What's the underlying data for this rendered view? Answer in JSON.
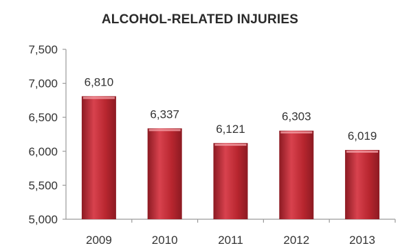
{
  "chart_data": {
    "type": "bar",
    "title": "ALCOHOL-RELATED INJURIES",
    "xlabel": "",
    "ylabel": "",
    "categories": [
      "2009",
      "2010",
      "2011",
      "2012",
      "2013"
    ],
    "values": [
      6810,
      6337,
      6121,
      6303,
      6019
    ],
    "data_labels": [
      "6,810",
      "6,337",
      "6,121",
      "6,303",
      "6,019"
    ],
    "ylim": [
      5000,
      7500
    ],
    "y_ticks": [
      5000,
      5500,
      6000,
      6500,
      7000,
      7500
    ],
    "y_tick_labels": [
      "5,000",
      "5,500",
      "6,000",
      "6,500",
      "7,000",
      "7,500"
    ],
    "grid": false,
    "legend": "none",
    "colors": {
      "bar_top": "#d8424e",
      "bar_mid": "#b8262f",
      "bar_bottom": "#8c1a22",
      "axis": "#9a9a9a"
    }
  }
}
